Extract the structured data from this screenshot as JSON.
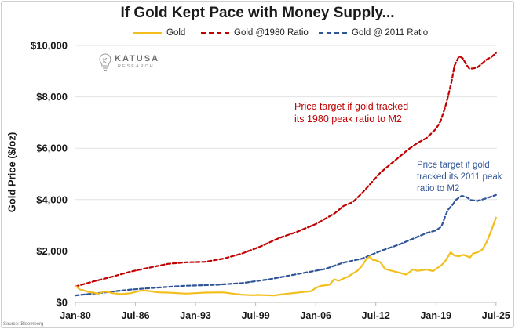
{
  "chart_data": {
    "type": "line",
    "title": "If Gold Kept Pace with Money Supply...",
    "xlabel": "",
    "ylabel": "Gold Price ($/oz)",
    "ylim": [
      0,
      10000
    ],
    "xlim": [
      1980.0,
      2025.6
    ],
    "yticks": [
      0,
      2000,
      4000,
      6000,
      8000,
      10000
    ],
    "ytick_labels": [
      "$0",
      "$2,000",
      "$4,000",
      "$6,000",
      "$8,000",
      "$10,000"
    ],
    "xticks": [
      1980.0,
      1986.5,
      1993.0,
      1999.5,
      2006.0,
      2012.5,
      2019.0,
      2025.5
    ],
    "xtick_labels": [
      "Jan-80",
      "Jul-86",
      "Jan-93",
      "Jul-99",
      "Jan-06",
      "Jul-12",
      "Jan-19",
      "Jul-25"
    ],
    "grid": true,
    "legend_position": "top",
    "series": [
      {
        "name": "Gold",
        "color": "#f2bf1e",
        "dash": "solid",
        "x": [
          1980.0,
          1980.5,
          1981.0,
          1981.5,
          1982.0,
          1982.5,
          1983.0,
          1983.5,
          1984.0,
          1985.0,
          1986.0,
          1987.0,
          1987.5,
          1988.0,
          1989.0,
          1990.0,
          1992.0,
          1994.0,
          1996.0,
          1997.0,
          1998.0,
          1999.0,
          1999.8,
          2000.5,
          2001.5,
          2002.5,
          2003.5,
          2004.5,
          2005.5,
          2006.0,
          2006.5,
          2007.5,
          2008.0,
          2008.5,
          2009.0,
          2009.5,
          2010.0,
          2010.5,
          2011.0,
          2011.5,
          2011.8,
          2012.2,
          2012.5,
          2013.0,
          2013.5,
          2014.0,
          2015.0,
          2015.8,
          2016.5,
          2017.0,
          2018.0,
          2018.7,
          2019.0,
          2019.6,
          2020.0,
          2020.6,
          2021.0,
          2021.5,
          2022.0,
          2022.7,
          2023.0,
          2023.5,
          2024.0,
          2024.5,
          2025.0,
          2025.5
        ],
        "y": [
          650,
          500,
          460,
          400,
          380,
          330,
          420,
          410,
          360,
          320,
          360,
          450,
          460,
          440,
          390,
          380,
          340,
          380,
          390,
          340,
          300,
          280,
          290,
          280,
          270,
          320,
          360,
          400,
          440,
          560,
          640,
          690,
          900,
          840,
          930,
          1000,
          1120,
          1230,
          1420,
          1700,
          1780,
          1650,
          1640,
          1560,
          1300,
          1250,
          1160,
          1080,
          1280,
          1230,
          1280,
          1220,
          1300,
          1450,
          1600,
          1950,
          1820,
          1800,
          1850,
          1750,
          1900,
          1950,
          2050,
          2350,
          2800,
          3300
        ]
      },
      {
        "name": "Gold @1980 Ratio",
        "color": "#c00000",
        "dash": "dashed",
        "x": [
          1980.0,
          1982.0,
          1984.0,
          1986.0,
          1988.0,
          1990.0,
          1992.0,
          1994.0,
          1996.0,
          1998.0,
          2000.0,
          2002.0,
          2004.0,
          2006.0,
          2008.0,
          2009.0,
          2010.0,
          2011.0,
          2012.0,
          2013.0,
          2014.0,
          2015.0,
          2016.0,
          2017.0,
          2018.0,
          2019.0,
          2019.5,
          2020.0,
          2020.3,
          2020.7,
          2021.0,
          2021.5,
          2021.9,
          2022.3,
          2022.6,
          2023.0,
          2023.5,
          2024.0,
          2024.5,
          2025.0,
          2025.5
        ],
        "y": [
          620,
          820,
          1000,
          1200,
          1350,
          1500,
          1560,
          1580,
          1700,
          1900,
          2170,
          2500,
          2750,
          3050,
          3450,
          3750,
          3900,
          4250,
          4650,
          5050,
          5350,
          5650,
          5950,
          6200,
          6400,
          6750,
          7050,
          7600,
          8000,
          8600,
          9200,
          9580,
          9500,
          9250,
          9100,
          9100,
          9150,
          9300,
          9450,
          9550,
          9700
        ]
      },
      {
        "name": "Gold @ 2011 Ratio",
        "color": "#2f5597",
        "dash": "dashed",
        "x": [
          1980.0,
          1983.0,
          1986.0,
          1989.0,
          1992.0,
          1995.0,
          1998.0,
          2001.0,
          2004.0,
          2007.0,
          2009.0,
          2011.0,
          2013.0,
          2015.0,
          2017.0,
          2018.0,
          2019.0,
          2019.6,
          2020.0,
          2020.3,
          2020.8,
          2021.2,
          2021.8,
          2022.3,
          2022.8,
          2023.5,
          2024.2,
          2025.0,
          2025.5
        ],
        "y": [
          270,
          380,
          500,
          580,
          650,
          680,
          750,
          900,
          1100,
          1300,
          1550,
          1700,
          2000,
          2250,
          2550,
          2700,
          2800,
          2950,
          3350,
          3600,
          3800,
          4000,
          4150,
          4100,
          3980,
          3950,
          4020,
          4120,
          4180
        ]
      }
    ],
    "annotations": [
      {
        "series": "Gold @1980 Ratio",
        "lines": [
          "Price target if gold tracked",
          "its 1980 peak ratio to M2"
        ]
      },
      {
        "series": "Gold @ 2011 Ratio",
        "lines": [
          "Price target if gold",
          "tracked its 2011 peak",
          "ratio to M2"
        ]
      }
    ],
    "source": "Source: Bloomberg"
  },
  "logo": {
    "name": "KATUSA",
    "sub": "RESEARCH"
  }
}
